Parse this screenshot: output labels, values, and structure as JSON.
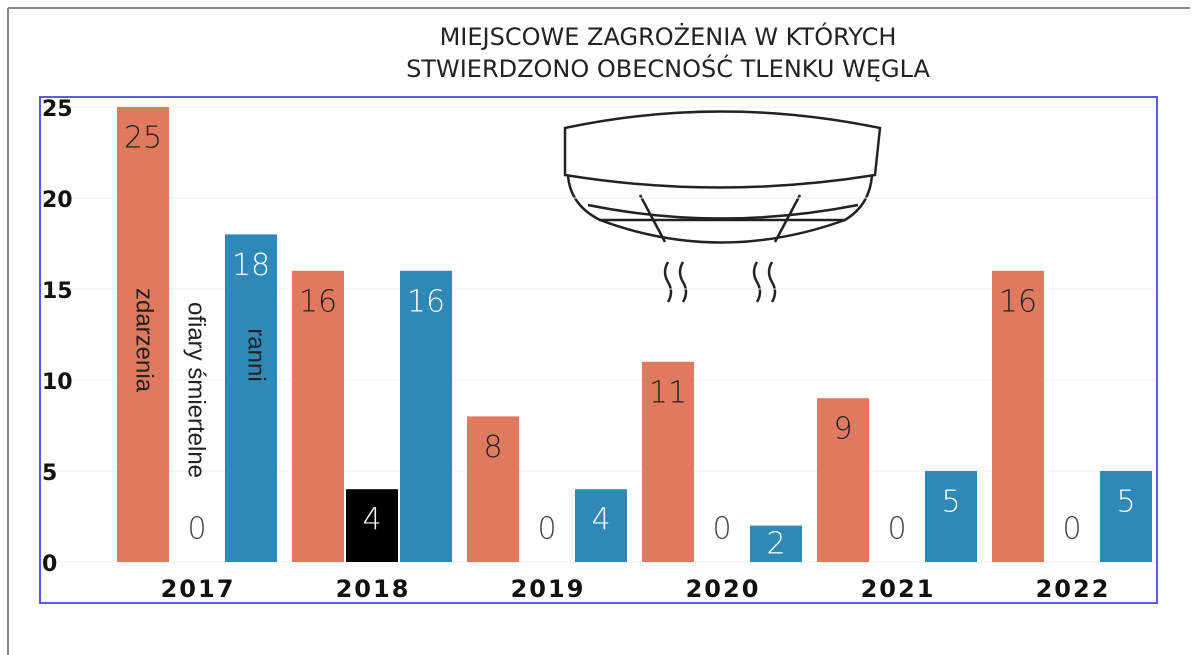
{
  "chart_data": {
    "type": "bar",
    "title": [
      "MIEJSCOWE ZAGROŻENIA W KTÓRYCH",
      "STWIERDZONO OBECNOŚĆ TLENKU WĘGLA"
    ],
    "categories": [
      "2017",
      "2018",
      "2019",
      "2020",
      "2021",
      "2022"
    ],
    "series": [
      {
        "name": "zdarzenia",
        "color": "#e07a5f",
        "values": [
          25,
          16,
          8,
          11,
          9,
          16
        ]
      },
      {
        "name": "ofiary śmiertelne",
        "color": "#000000",
        "values": [
          0,
          4,
          0,
          0,
          0,
          0
        ]
      },
      {
        "name": "ranni",
        "color": "#2e88b8",
        "values": [
          18,
          16,
          4,
          2,
          5,
          5
        ]
      }
    ],
    "ylim": [
      0,
      25
    ],
    "yticks": [
      0,
      5,
      10,
      15,
      20,
      25
    ],
    "grid": true
  }
}
